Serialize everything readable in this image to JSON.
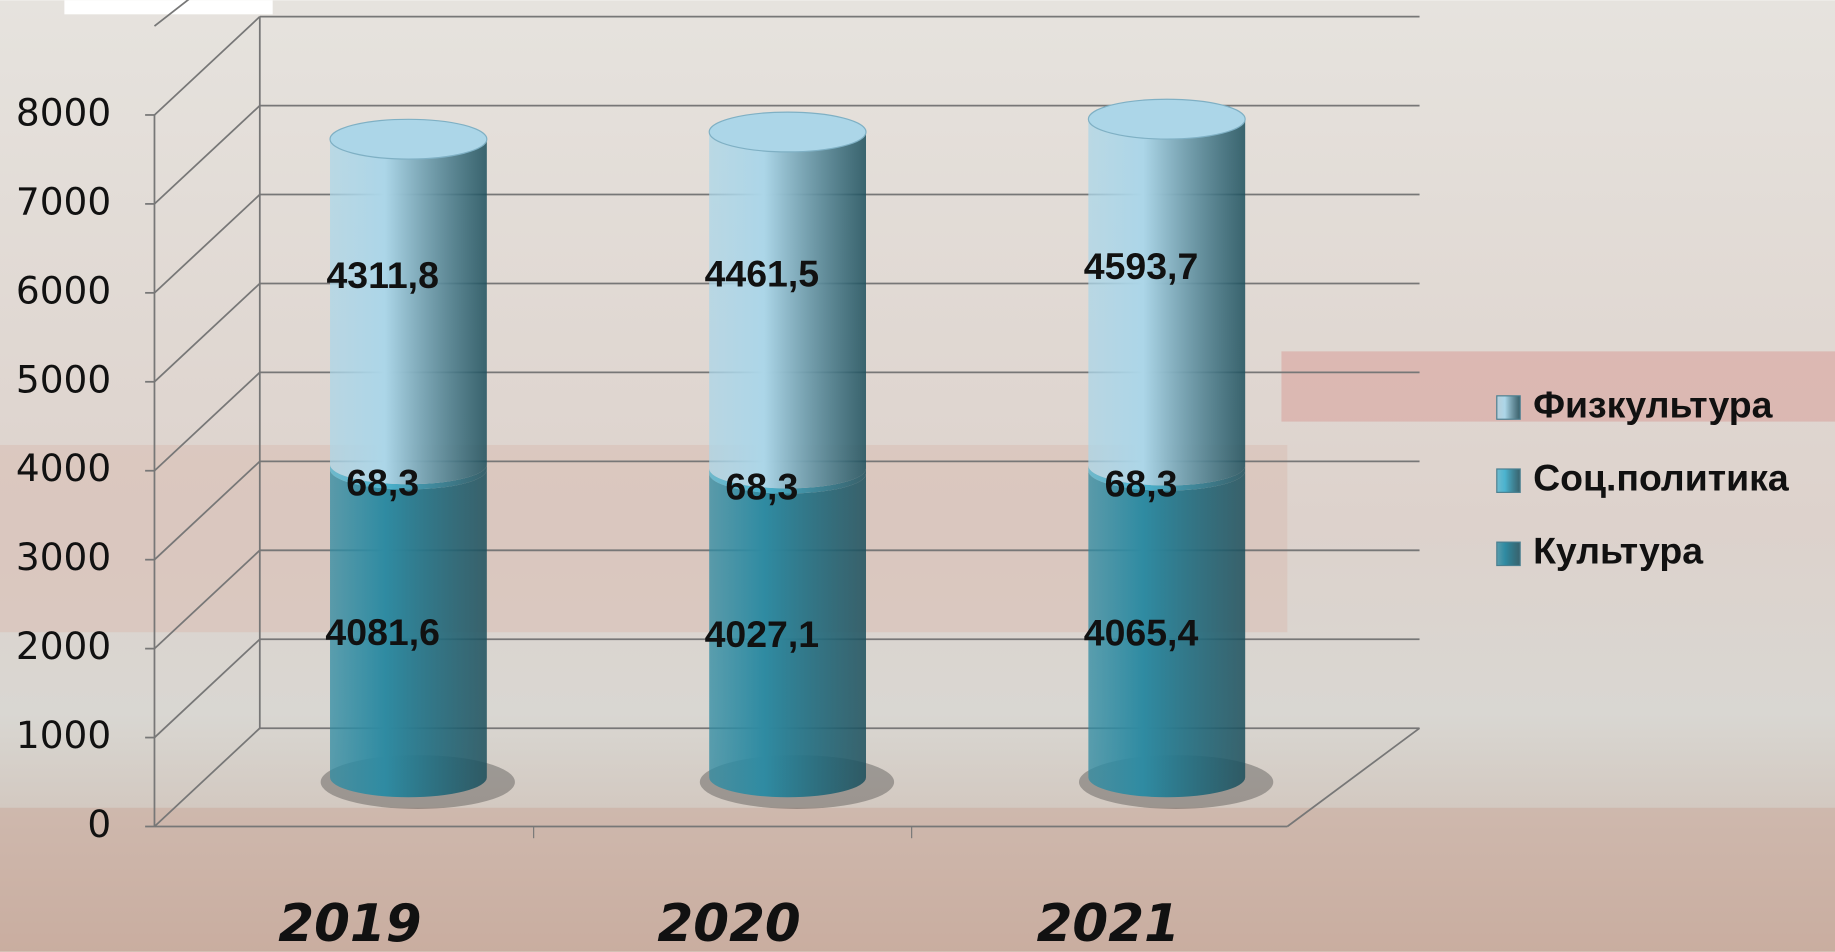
{
  "chart_data": {
    "type": "bar3d_stacked",
    "categories": [
      "2019",
      "2020",
      "2021"
    ],
    "series": [
      {
        "name": "Культура",
        "color": "#2f8ba2",
        "values": [
          4081.6,
          4027.1,
          4065.4
        ],
        "value_labels": [
          "4081,6",
          "4027,1",
          "4065,4"
        ]
      },
      {
        "name": "Соц.политика",
        "color": "#4bb3cf",
        "values": [
          68.3,
          68.3,
          68.3
        ],
        "value_labels": [
          "68,3",
          "68,3",
          "68,3"
        ]
      },
      {
        "name": "Физкультура",
        "color": "#acd6e8",
        "values": [
          4311.8,
          4461.5,
          4593.7
        ],
        "value_labels": [
          "4311,8",
          "4461,5",
          "4593,7"
        ]
      }
    ],
    "ylim": [
      0,
      9000
    ],
    "yticks": [
      0,
      1000,
      2000,
      3000,
      4000,
      5000,
      6000,
      7000,
      8000
    ],
    "grid": true,
    "legend": "right"
  }
}
